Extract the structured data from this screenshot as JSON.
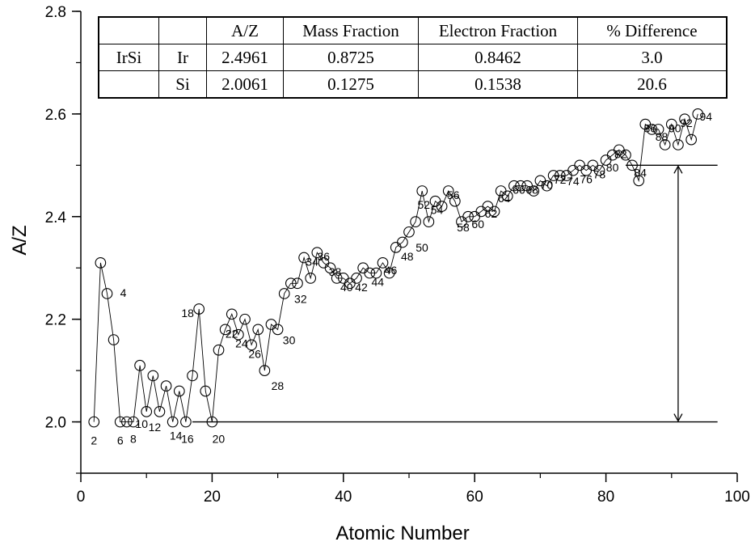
{
  "chart_data": {
    "type": "scatter",
    "xlabel": "Atomic Number",
    "ylabel": "A/Z",
    "xlim": [
      0,
      100
    ],
    "ylim": [
      1.9,
      2.8
    ],
    "xticks": [
      0,
      20,
      40,
      60,
      80,
      100
    ],
    "yticks": [
      2.0,
      2.2,
      2.4,
      2.6,
      2.8
    ],
    "x_tick_labels": [
      "0",
      "20",
      "40",
      "60",
      "80",
      "100"
    ],
    "y_tick_labels": [
      "2.0",
      "2.2",
      "2.4",
      "2.6",
      "2.8"
    ],
    "grid": false,
    "series": [
      {
        "x": [
          2,
          3,
          4,
          5,
          6,
          7,
          8,
          9,
          10,
          11,
          12,
          13,
          14,
          15,
          16,
          17,
          18,
          19,
          20,
          21,
          22,
          23,
          24,
          25,
          26,
          27,
          28,
          29,
          30,
          31,
          32,
          33,
          34,
          35,
          36,
          37,
          38,
          39,
          40,
          41,
          42,
          43,
          44,
          45,
          46,
          47,
          48,
          49,
          50,
          51,
          52,
          53,
          54,
          55,
          56,
          57,
          58,
          59,
          60,
          61,
          62,
          63,
          64,
          65,
          66,
          67,
          68,
          69,
          70,
          71,
          72,
          73,
          74,
          75,
          76,
          77,
          78,
          79,
          80,
          81,
          82,
          83,
          84,
          85,
          86,
          87,
          88,
          89,
          90,
          91,
          92,
          93,
          94
        ],
        "y": [
          2.0,
          2.31,
          2.25,
          2.16,
          2.0,
          2.0,
          2.0,
          2.11,
          2.02,
          2.09,
          2.02,
          2.07,
          2.0,
          2.06,
          2.0,
          2.09,
          2.22,
          2.06,
          2.0,
          2.14,
          2.18,
          2.21,
          2.17,
          2.2,
          2.15,
          2.18,
          2.1,
          2.19,
          2.18,
          2.25,
          2.27,
          2.27,
          2.32,
          2.28,
          2.33,
          2.31,
          2.3,
          2.28,
          2.28,
          2.27,
          2.28,
          2.3,
          2.29,
          2.29,
          2.31,
          2.29,
          2.34,
          2.35,
          2.37,
          2.39,
          2.45,
          2.39,
          2.43,
          2.42,
          2.45,
          2.43,
          2.39,
          2.4,
          2.4,
          2.41,
          2.42,
          2.41,
          2.45,
          2.44,
          2.46,
          2.46,
          2.46,
          2.45,
          2.47,
          2.46,
          2.48,
          2.48,
          2.48,
          2.49,
          2.5,
          2.49,
          2.5,
          2.49,
          2.51,
          2.52,
          2.53,
          2.52,
          2.5,
          2.47,
          2.58,
          2.57,
          2.57,
          2.54,
          2.58,
          2.54,
          2.59,
          2.55,
          2.6
        ]
      }
    ],
    "point_labels": [
      {
        "text": "2",
        "x": 2
      },
      {
        "text": "4",
        "x": 4
      },
      {
        "text": "6",
        "x": 6
      },
      {
        "text": "8",
        "x": 8
      },
      {
        "text": "10",
        "x": 10
      },
      {
        "text": "12",
        "x": 12
      },
      {
        "text": "14",
        "x": 14
      },
      {
        "text": "16",
        "x": 16
      },
      {
        "text": "18",
        "x": 18
      },
      {
        "text": "20",
        "x": 20
      },
      {
        "text": "22",
        "x": 22
      },
      {
        "text": "24",
        "x": 24
      },
      {
        "text": "26",
        "x": 26
      },
      {
        "text": "28",
        "x": 28
      },
      {
        "text": "30",
        "x": 30
      },
      {
        "text": "32",
        "x": 32
      },
      {
        "text": "34",
        "x": 34
      },
      {
        "text": "36",
        "x": 36
      },
      {
        "text": "38",
        "x": 38
      },
      {
        "text": "40",
        "x": 40
      },
      {
        "text": "42",
        "x": 42
      },
      {
        "text": "44",
        "x": 44
      },
      {
        "text": "46",
        "x": 46
      },
      {
        "text": "48",
        "x": 48
      },
      {
        "text": "50",
        "x": 50
      },
      {
        "text": "52",
        "x": 52
      },
      {
        "text": "54",
        "x": 54
      },
      {
        "text": "56",
        "x": 56
      },
      {
        "text": "58",
        "x": 58
      },
      {
        "text": "60",
        "x": 60
      },
      {
        "text": "62",
        "x": 62
      },
      {
        "text": "64",
        "x": 64
      },
      {
        "text": "66",
        "x": 66
      },
      {
        "text": "68",
        "x": 68
      },
      {
        "text": "70",
        "x": 70
      },
      {
        "text": "72",
        "x": 72
      },
      {
        "text": "74",
        "x": 74
      },
      {
        "text": "76",
        "x": 76
      },
      {
        "text": "78",
        "x": 78
      },
      {
        "text": "80",
        "x": 80
      },
      {
        "text": "82",
        "x": 82
      },
      {
        "text": "84",
        "x": 84
      },
      {
        "text": "86",
        "x": 86
      },
      {
        "text": "88",
        "x": 88
      },
      {
        "text": "90",
        "x": 90
      },
      {
        "text": "92",
        "x": 92
      },
      {
        "text": "94",
        "x": 94
      }
    ],
    "reference_lines": [
      {
        "y": 2.0,
        "x_from": 17,
        "x_to": 97
      },
      {
        "y": 2.5,
        "x_from": 83,
        "x_to": 97
      }
    ],
    "double_arrow": {
      "x": 91,
      "y_from": 2.0,
      "y_to": 2.5
    }
  },
  "table": {
    "headers": [
      "",
      "",
      "A/Z",
      "Mass Fraction",
      "Electron Fraction",
      "% Difference"
    ],
    "rows": [
      [
        "IrSi",
        "Ir",
        "2.4961",
        "0.8725",
        "0.8462",
        "3.0"
      ],
      [
        "",
        "Si",
        "2.0061",
        "0.1275",
        "0.1538",
        "20.6"
      ]
    ]
  }
}
